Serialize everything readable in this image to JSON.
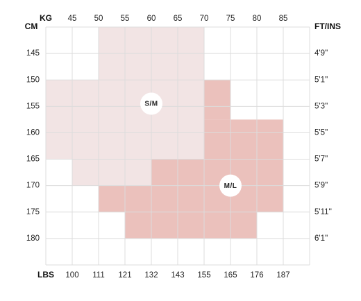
{
  "chart_data": {
    "type": "heatmap",
    "axes": {
      "top": {
        "title": "KG",
        "ticks": [
          "45",
          "50",
          "55",
          "60",
          "65",
          "70",
          "75",
          "80",
          "85"
        ]
      },
      "bottom": {
        "title": "LBS",
        "ticks": [
          "100",
          "111",
          "121",
          "132",
          "143",
          "155",
          "165",
          "176",
          "187"
        ]
      },
      "left": {
        "title": "CM",
        "ticks": [
          "145",
          "150",
          "155",
          "160",
          "165",
          "170",
          "175",
          "180"
        ]
      },
      "right": {
        "title": "FT/INS",
        "ticks": [
          "4'9''",
          "5'1''",
          "5'3''",
          "5'5''",
          "5'7''",
          "5'9''",
          "5'11''",
          "6'1''"
        ]
      }
    },
    "x_range_kg": [
      40,
      90
    ],
    "y_range_cm": [
      140,
      185
    ],
    "grid": true,
    "zones": [
      {
        "label": "S/M",
        "color": "#f2e4e4",
        "label_position": {
          "kg": 60,
          "cm": 154.5
        },
        "rects": [
          {
            "kg": [
              50,
              70
            ],
            "cm": [
              140,
              150
            ]
          },
          {
            "kg": [
              40,
              70
            ],
            "cm": [
              150,
              165
            ]
          },
          {
            "kg": [
              45,
              60
            ],
            "cm": [
              165,
              170
            ]
          }
        ]
      },
      {
        "label": "M/L",
        "color": "#ebc1bc",
        "label_position": {
          "kg": 75,
          "cm": 170
        },
        "rects": [
          {
            "kg": [
              70,
              75
            ],
            "cm": [
              150,
              157.5
            ]
          },
          {
            "kg": [
              70,
              85
            ],
            "cm": [
              157.5,
              165
            ]
          },
          {
            "kg": [
              60,
              85
            ],
            "cm": [
              165,
              170
            ]
          },
          {
            "kg": [
              50,
              85
            ],
            "cm": [
              170,
              175
            ]
          },
          {
            "kg": [
              55,
              80
            ],
            "cm": [
              175,
              180
            ]
          }
        ]
      }
    ]
  }
}
